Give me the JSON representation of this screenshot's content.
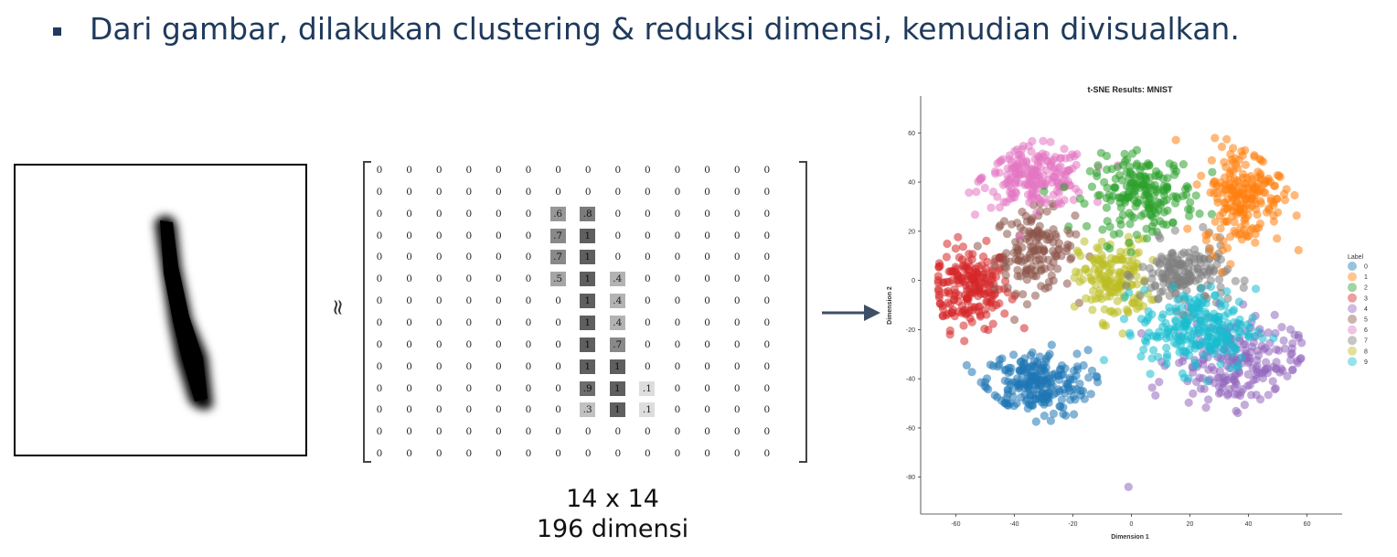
{
  "headline": "Dari gambar, dilakukan clustering & reduksi dimensi, kemudian divisualkan.",
  "approx_symbol": "≈",
  "matrix": {
    "rows": [
      [
        "0",
        "0",
        "0",
        "0",
        "0",
        "0",
        "0",
        "0",
        "0",
        "0",
        "0",
        "0",
        "0",
        "0"
      ],
      [
        "0",
        "0",
        "0",
        "0",
        "0",
        "0",
        "0",
        "0",
        "0",
        "0",
        "0",
        "0",
        "0",
        "0"
      ],
      [
        "0",
        "0",
        "0",
        "0",
        "0",
        "0",
        ".6",
        ".8",
        "0",
        "0",
        "0",
        "0",
        "0",
        "0"
      ],
      [
        "0",
        "0",
        "0",
        "0",
        "0",
        "0",
        ".7",
        "1",
        "0",
        "0",
        "0",
        "0",
        "0",
        "0"
      ],
      [
        "0",
        "0",
        "0",
        "0",
        "0",
        "0",
        ".7",
        "1",
        "0",
        "0",
        "0",
        "0",
        "0",
        "0"
      ],
      [
        "0",
        "0",
        "0",
        "0",
        "0",
        "0",
        ".5",
        "1",
        ".4",
        "0",
        "0",
        "0",
        "0",
        "0"
      ],
      [
        "0",
        "0",
        "0",
        "0",
        "0",
        "0",
        "0",
        "1",
        ".4",
        "0",
        "0",
        "0",
        "0",
        "0"
      ],
      [
        "0",
        "0",
        "0",
        "0",
        "0",
        "0",
        "0",
        "1",
        ".4",
        "0",
        "0",
        "0",
        "0",
        "0"
      ],
      [
        "0",
        "0",
        "0",
        "0",
        "0",
        "0",
        "0",
        "1",
        ".7",
        "0",
        "0",
        "0",
        "0",
        "0"
      ],
      [
        "0",
        "0",
        "0",
        "0",
        "0",
        "0",
        "0",
        "1",
        "1",
        "0",
        "0",
        "0",
        "0",
        "0"
      ],
      [
        "0",
        "0",
        "0",
        "0",
        "0",
        "0",
        "0",
        ".9",
        "1",
        ".1",
        "0",
        "0",
        "0",
        "0"
      ],
      [
        "0",
        "0",
        "0",
        "0",
        "0",
        "0",
        "0",
        ".3",
        "1",
        ".1",
        "0",
        "0",
        "0",
        "0"
      ],
      [
        "0",
        "0",
        "0",
        "0",
        "0",
        "0",
        "0",
        "0",
        "0",
        "0",
        "0",
        "0",
        "0",
        "0"
      ],
      [
        "0",
        "0",
        "0",
        "0",
        "0",
        "0",
        "0",
        "0",
        "0",
        "0",
        "0",
        "0",
        "0",
        "0"
      ]
    ],
    "size_label": "14 x 14",
    "dims_label": "196 dimensi"
  },
  "colors": {
    "text": "#1f3a5c",
    "arrow": "#3d4f66",
    "palette": [
      "#1f77b4",
      "#ff7f0e",
      "#2ca02c",
      "#d62728",
      "#9467bd",
      "#8c564b",
      "#e377c2",
      "#7f7f7f",
      "#bcbd22",
      "#17becf"
    ]
  },
  "chart_data": {
    "type": "scatter",
    "title": "t-SNE Results: MNIST",
    "xlabel": "Dimension 1",
    "ylabel": "Dimension 2",
    "xlim": [
      -72,
      72
    ],
    "ylim": [
      -95,
      75
    ],
    "xticks": [
      -60,
      -40,
      -20,
      0,
      20,
      40,
      60
    ],
    "yticks": [
      60,
      40,
      20,
      0,
      -20,
      -40,
      -60,
      -80
    ],
    "legend": {
      "title": "Label",
      "position": "right",
      "labels": [
        "0",
        "1",
        "2",
        "3",
        "4",
        "5",
        "6",
        "7",
        "8",
        "9"
      ]
    },
    "clusters": [
      {
        "label": "0",
        "center": [
          -33,
          -42
        ],
        "spread": [
          12,
          9
        ],
        "count": 230
      },
      {
        "label": "1",
        "center": [
          38,
          35
        ],
        "spread": [
          9,
          14
        ],
        "count": 210
      },
      {
        "label": "2",
        "center": [
          4,
          35
        ],
        "spread": [
          12,
          10
        ],
        "count": 200
      },
      {
        "label": "3",
        "center": [
          -55,
          -3
        ],
        "spread": [
          9,
          11
        ],
        "count": 200
      },
      {
        "label": "4",
        "center": [
          35,
          -33
        ],
        "spread": [
          14,
          12
        ],
        "count": 220
      },
      {
        "label": "5",
        "center": [
          -33,
          12
        ],
        "spread": [
          9,
          11
        ],
        "count": 150
      },
      {
        "label": "6",
        "center": [
          -33,
          42
        ],
        "spread": [
          12,
          8
        ],
        "count": 210
      },
      {
        "label": "7",
        "center": [
          18,
          2
        ],
        "spread": [
          10,
          9
        ],
        "count": 170
      },
      {
        "label": "8",
        "center": [
          -6,
          0
        ],
        "spread": [
          8,
          11
        ],
        "count": 160
      },
      {
        "label": "9",
        "center": [
          23,
          -20
        ],
        "spread": [
          13,
          11
        ],
        "count": 230
      }
    ],
    "outliers": [
      {
        "label": "4",
        "x": -1,
        "y": -84
      }
    ]
  }
}
